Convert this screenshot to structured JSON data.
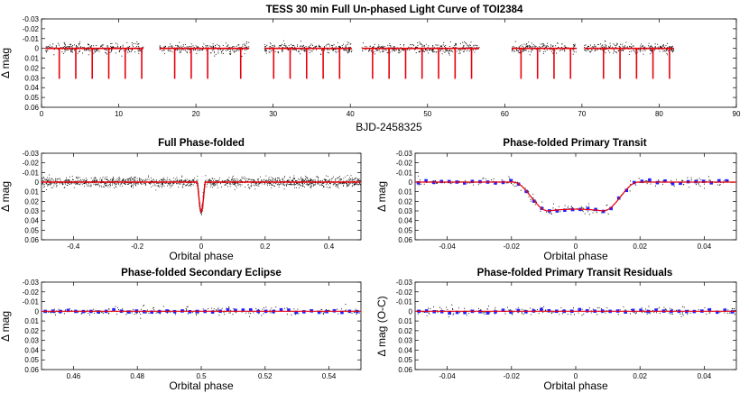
{
  "chart_data": [
    {
      "id": "lc_full",
      "type": "scatter",
      "title": "TESS 30 min Full Un-phased Light Curve of TOI2384",
      "xlabel": "BJD-2458325",
      "ylabel": "Δ mag",
      "xlim": [
        0,
        90
      ],
      "ylim": [
        -0.03,
        0.06
      ],
      "y_inverted": true,
      "xticks": [
        "0",
        "10",
        "20",
        "30",
        "40",
        "50",
        "60",
        "70",
        "80",
        "90"
      ],
      "xtick_values": [
        0,
        10,
        20,
        30,
        40,
        50,
        60,
        70,
        80,
        90
      ],
      "yticks": [
        "-0.03",
        "-0.02",
        "-0.01",
        "0",
        "0.01",
        "0.02",
        "0.03",
        "0.04",
        "0.05",
        "0.06"
      ],
      "ytick_values": [
        -0.03,
        -0.02,
        -0.01,
        0,
        0.01,
        0.02,
        0.03,
        0.04,
        0.05,
        0.06
      ],
      "data_segments": [
        [
          0.5,
          13.2
        ],
        [
          15.3,
          26.9
        ],
        [
          28.9,
          40.2
        ],
        [
          41.5,
          56.7
        ],
        [
          60.9,
          69.3
        ],
        [
          70.3,
          81.9
        ]
      ],
      "baseline_scatter": 0.0025,
      "model_color": "#e8000b",
      "point_color": "#000000",
      "transits": {
        "period": 2.136,
        "first_epoch": 2.3,
        "depth": 0.031,
        "times": [
          2.3,
          4.44,
          6.57,
          8.71,
          10.84,
          12.98,
          17.25,
          19.39,
          21.52,
          25.8,
          30.07,
          32.2,
          34.34,
          36.48,
          38.61,
          42.88,
          45.02,
          47.16,
          49.29,
          51.43,
          53.57,
          55.7,
          62.11,
          64.25,
          66.38,
          68.52,
          72.79,
          74.93,
          77.07,
          79.2,
          81.34
        ]
      },
      "grid": false
    },
    {
      "id": "phase_full",
      "type": "scatter",
      "title": "Full Phase-folded",
      "xlabel": "Orbital phase",
      "ylabel": "Δ mag",
      "xlim": [
        -0.5,
        0.5
      ],
      "ylim": [
        -0.03,
        0.06
      ],
      "y_inverted": true,
      "xticks": [
        "-0.4",
        "-0.2",
        "0",
        "0.2",
        "0.4"
      ],
      "xtick_values": [
        -0.4,
        -0.2,
        0,
        0.2,
        0.4
      ],
      "yticks": [
        "-0.03",
        "-0.02",
        "-0.01",
        "0",
        "0.01",
        "0.02",
        "0.03",
        "0.04",
        "0.05",
        "0.06"
      ],
      "ytick_values": [
        -0.03,
        -0.02,
        -0.01,
        0,
        0.01,
        0.02,
        0.03,
        0.04,
        0.05,
        0.06
      ],
      "transit_center": 0,
      "transit_depth": 0.031,
      "transit_halfwidth_phase": 0.012,
      "baseline_scatter": 0.0025,
      "model_color": "#e8000b",
      "grid": false
    },
    {
      "id": "phase_primary",
      "type": "scatter",
      "title": "Phase-folded Primary Transit",
      "xlabel": "Orbital phase",
      "ylabel": "Δ mag",
      "xlim": [
        -0.05,
        0.05
      ],
      "ylim": [
        -0.03,
        0.06
      ],
      "y_inverted": true,
      "xticks": [
        "-0.04",
        "-0.02",
        "0",
        "0.02",
        "0.04"
      ],
      "xtick_values": [
        -0.04,
        -0.02,
        0,
        0.02,
        0.04
      ],
      "yticks": [
        "-0.03",
        "-0.02",
        "-0.01",
        "0",
        "0.01",
        "0.02",
        "0.03",
        "0.04",
        "0.05",
        "0.06"
      ],
      "ytick_values": [
        -0.03,
        -0.02,
        -0.01,
        0,
        0.01,
        0.02,
        0.03,
        0.04,
        0.05,
        0.06
      ],
      "transit_center": 0,
      "transit_depth": 0.03,
      "ingress_start": -0.0195,
      "ingress_end": -0.0085,
      "egress_start": 0.0085,
      "egress_end": 0.0195,
      "binned_color": "#1f22ff",
      "model_color": "#e8000b",
      "grid": false
    },
    {
      "id": "phase_secondary",
      "type": "scatter",
      "title": "Phase-folded Secondary Eclipse",
      "xlabel": "Orbital phase",
      "ylabel": "Δ mag",
      "xlim": [
        0.45,
        0.55
      ],
      "ylim": [
        -0.03,
        0.06
      ],
      "y_inverted": true,
      "xticks": [
        "0.46",
        "0.48",
        "0.5",
        "0.52",
        "0.54"
      ],
      "xtick_values": [
        0.46,
        0.48,
        0.5,
        0.52,
        0.54
      ],
      "yticks": [
        "-0.03",
        "-0.02",
        "-0.01",
        "0",
        "0.01",
        "0.02",
        "0.03",
        "0.04",
        "0.05",
        "0.06"
      ],
      "ytick_values": [
        -0.03,
        -0.02,
        -0.01,
        0,
        0.01,
        0.02,
        0.03,
        0.04,
        0.05,
        0.06
      ],
      "model_level": 0,
      "binned_color": "#1f22ff",
      "model_color": "#e8000b",
      "grid": false
    },
    {
      "id": "phase_residuals",
      "type": "scatter",
      "title": "Phase-folded Primary Transit Residuals",
      "xlabel": "Orbital phase",
      "ylabel": "Δ mag (O-C)",
      "xlim": [
        -0.05,
        0.05
      ],
      "ylim": [
        -0.03,
        0.06
      ],
      "y_inverted": true,
      "xticks": [
        "-0.04",
        "-0.02",
        "0",
        "0.02",
        "0.04"
      ],
      "xtick_values": [
        -0.04,
        -0.02,
        0,
        0.02,
        0.04
      ],
      "yticks": [
        "-0.03",
        "-0.02",
        "-0.01",
        "0",
        "0.01",
        "0.02",
        "0.03",
        "0.04",
        "0.05",
        "0.06"
      ],
      "ytick_values": [
        -0.03,
        -0.02,
        -0.01,
        0,
        0.01,
        0.02,
        0.03,
        0.04,
        0.05,
        0.06
      ],
      "model_level": 0,
      "binned_color": "#1f22ff",
      "model_color": "#e8000b",
      "grid": false
    }
  ]
}
